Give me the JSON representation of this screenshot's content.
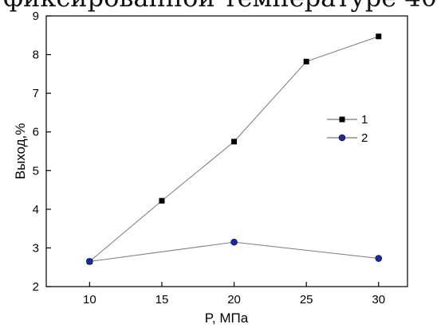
{
  "header_text": "фиксированной температуре 40",
  "chart_data": {
    "type": "line",
    "x": [
      10,
      15,
      20,
      25,
      30
    ],
    "xlabel": "P, МПа",
    "ylabel": "Выход,%",
    "xlim": [
      7,
      32
    ],
    "ylim": [
      2,
      9
    ],
    "xticks": [
      10,
      15,
      20,
      25,
      30
    ],
    "yticks": [
      2,
      3,
      4,
      5,
      6,
      7,
      8,
      9
    ],
    "grid": false,
    "legend_position": "right",
    "series": [
      {
        "name": "1",
        "marker": "square",
        "color": "#000000",
        "points": [
          [
            10,
            2.65
          ],
          [
            15,
            4.22
          ],
          [
            20,
            5.75
          ],
          [
            25,
            7.82
          ],
          [
            30,
            8.47
          ]
        ]
      },
      {
        "name": "2",
        "marker": "circle",
        "color": "#1a2a9a",
        "points": [
          [
            10,
            2.65
          ],
          [
            20,
            3.15
          ],
          [
            30,
            2.73
          ]
        ]
      }
    ]
  }
}
